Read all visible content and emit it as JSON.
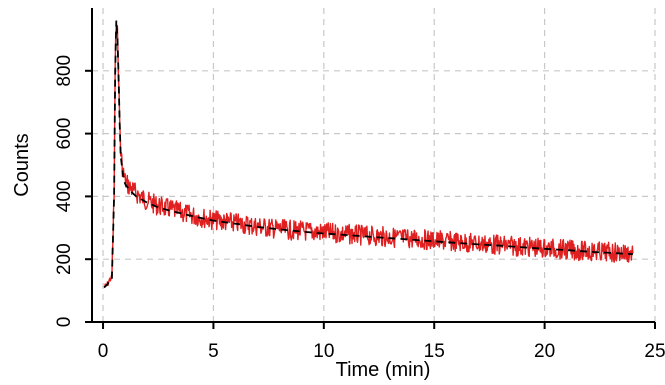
{
  "chart_data": {
    "type": "line",
    "title": "",
    "xlabel": "Time (min)",
    "ylabel": "Counts",
    "xlim": [
      -0.5,
      25
    ],
    "ylim": [
      0,
      1000
    ],
    "x_ticks": [
      0,
      5,
      10,
      15,
      20,
      25
    ],
    "y_ticks": [
      0,
      200,
      400,
      600,
      800
    ],
    "x_tick_labels": [
      "0",
      "5",
      "10",
      "15",
      "20",
      "25"
    ],
    "y_tick_labels": [
      "0",
      "200",
      "400",
      "600",
      "800"
    ],
    "grid": true,
    "legend": "none",
    "series": [
      {
        "style": "solid",
        "color": "#e02020",
        "x": [
          0.05,
          0.2,
          0.3,
          0.4,
          0.5,
          0.55,
          0.6,
          0.65,
          0.7,
          0.75,
          0.8,
          0.9,
          1.0,
          1.2,
          1.5,
          2.0,
          2.5,
          3.0,
          4.0,
          5.0,
          6.0,
          7.0,
          8.0,
          9.0,
          10.0,
          11.0,
          12.0,
          13.0,
          14.0,
          15.0,
          16.0,
          17.0,
          18.0,
          19.0,
          20.0,
          21.0,
          22.0,
          23.0,
          24.0
        ],
        "y": [
          110,
          120,
          135,
          140,
          400,
          800,
          970,
          920,
          800,
          650,
          540,
          480,
          450,
          430,
          410,
          385,
          370,
          360,
          340,
          325,
          315,
          305,
          295,
          290,
          285,
          280,
          275,
          270,
          265,
          260,
          255,
          250,
          245,
          240,
          235,
          230,
          225,
          222,
          218
        ]
      },
      {
        "style": "dashed",
        "color": "#000000",
        "x": [
          0.05,
          0.2,
          0.3,
          0.4,
          0.5,
          0.55,
          0.6,
          0.65,
          0.7,
          0.75,
          0.8,
          0.9,
          1.0,
          1.2,
          1.5,
          2.0,
          2.5,
          3.0,
          4.0,
          5.0,
          6.0,
          7.0,
          8.0,
          9.0,
          10.0,
          11.0,
          12.0,
          13.0,
          14.0,
          15.0,
          16.0,
          17.0,
          18.0,
          19.0,
          20.0,
          21.0,
          22.0,
          23.0,
          24.0
        ],
        "y": [
          110,
          120,
          135,
          140,
          400,
          800,
          960,
          910,
          790,
          640,
          530,
          470,
          440,
          420,
          400,
          380,
          365,
          355,
          338,
          323,
          313,
          303,
          295,
          288,
          282,
          277,
          272,
          267,
          262,
          257,
          252,
          247,
          243,
          238,
          233,
          229,
          224,
          220,
          216
        ]
      }
    ]
  }
}
